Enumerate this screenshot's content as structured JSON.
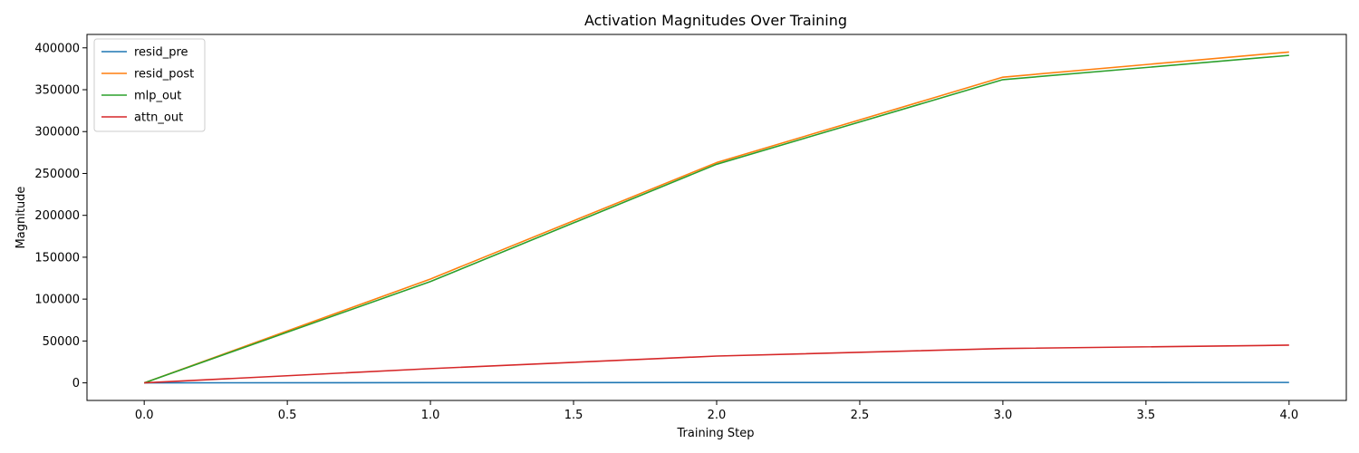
{
  "chart_data": {
    "type": "line",
    "title": "Activation Magnitudes Over Training",
    "xlabel": "Training Step",
    "ylabel": "Magnitude",
    "x": [
      0,
      1,
      2,
      3,
      4
    ],
    "xlim": [
      -0.2,
      4.2
    ],
    "ylim": [
      -21000,
      416000
    ],
    "xticks": [
      0.0,
      0.5,
      1.0,
      1.5,
      2.0,
      2.5,
      3.0,
      3.5,
      4.0
    ],
    "xtick_labels": [
      "0.0",
      "0.5",
      "1.0",
      "1.5",
      "2.0",
      "2.5",
      "3.0",
      "3.5",
      "4.0"
    ],
    "yticks": [
      0,
      50000,
      100000,
      150000,
      200000,
      250000,
      300000,
      350000,
      400000
    ],
    "ytick_labels": [
      "0",
      "50000",
      "100000",
      "150000",
      "200000",
      "250000",
      "300000",
      "350000",
      "400000"
    ],
    "grid": false,
    "legend_position": "top-left",
    "series": [
      {
        "name": "resid_pre",
        "color": "#1f77b4",
        "values": [
          0,
          300,
          400,
          450,
          500
        ]
      },
      {
        "name": "resid_post",
        "color": "#ff7f0e",
        "values": [
          0,
          124000,
          263000,
          365000,
          395000
        ]
      },
      {
        "name": "mlp_out",
        "color": "#2ca02c",
        "values": [
          0,
          121000,
          261000,
          362000,
          391000
        ]
      },
      {
        "name": "attn_out",
        "color": "#d62728",
        "values": [
          0,
          17000,
          32000,
          41000,
          45000
        ]
      }
    ]
  }
}
